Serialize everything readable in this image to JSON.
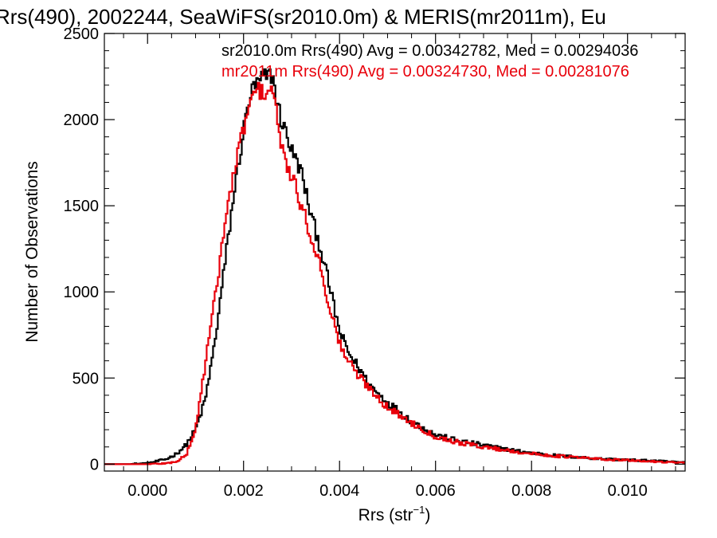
{
  "chart_data": {
    "type": "line",
    "title": "Rrs(490), 2002244, SeaWiFS(sr2010.0m) & MERIS(mr2011m), Eu",
    "xlabel": "Rrs (str",
    "xlabel_sup": "−1",
    "xlabel_suffix": ")",
    "ylabel": "Number of Observations",
    "xlim": [
      -0.0009,
      0.0112
    ],
    "ylim": [
      -40,
      2500
    ],
    "xticks": [
      0.0,
      0.002,
      0.004,
      0.006,
      0.008,
      0.01
    ],
    "xtick_labels": [
      "0.000",
      "0.002",
      "0.004",
      "0.006",
      "0.008",
      "0.010"
    ],
    "yticks": [
      0,
      500,
      1000,
      1500,
      2000,
      2500
    ],
    "ytick_labels": [
      "0",
      "500",
      "1000",
      "1500",
      "2000",
      "2500"
    ],
    "grid": false,
    "legend_position": "top-right",
    "series": [
      {
        "name": "sr2010.0m",
        "color": "#000000",
        "legend_text": "sr2010.0m Rrs(490) Avg = 0.00342782, Med = 0.00294036",
        "x": [
          -0.0009,
          -0.0004,
          0.0,
          0.0004,
          0.0006,
          0.0008,
          0.001,
          0.0012,
          0.0014,
          0.0016,
          0.0018,
          0.002,
          0.0021,
          0.0022,
          0.0023,
          0.0024,
          0.0025,
          0.0026,
          0.0027,
          0.0028,
          0.0029,
          0.003,
          0.0031,
          0.0032,
          0.0034,
          0.0036,
          0.0038,
          0.004,
          0.0042,
          0.0044,
          0.0046,
          0.0048,
          0.005,
          0.0055,
          0.006,
          0.0065,
          0.007,
          0.0075,
          0.008,
          0.0085,
          0.009,
          0.0095,
          0.01,
          0.0105,
          0.0112
        ],
        "y": [
          0,
          0,
          5,
          30,
          60,
          110,
          200,
          370,
          700,
          1140,
          1570,
          1930,
          2100,
          2180,
          2210,
          2240,
          2250,
          2260,
          2100,
          1980,
          1920,
          1820,
          1760,
          1700,
          1450,
          1260,
          1020,
          770,
          640,
          560,
          470,
          410,
          360,
          250,
          170,
          135,
          110,
          85,
          65,
          50,
          40,
          30,
          25,
          20,
          10
        ]
      },
      {
        "name": "mr2011m",
        "color": "#e8000b",
        "legend_text": "mr2011m Rrs(490) Avg = 0.00324730, Med = 0.00281076",
        "x": [
          -0.0009,
          -0.0004,
          0.0,
          0.0004,
          0.0006,
          0.0008,
          0.001,
          0.0012,
          0.0014,
          0.0016,
          0.0018,
          0.002,
          0.0021,
          0.0022,
          0.0023,
          0.0024,
          0.0025,
          0.0026,
          0.0027,
          0.0028,
          0.0029,
          0.003,
          0.0031,
          0.0032,
          0.0034,
          0.0036,
          0.0038,
          0.004,
          0.0042,
          0.0044,
          0.0046,
          0.0048,
          0.005,
          0.0055,
          0.006,
          0.0065,
          0.007,
          0.0075,
          0.008,
          0.0085,
          0.009,
          0.0095,
          0.01,
          0.0105,
          0.0112
        ],
        "y": [
          0,
          0,
          0,
          5,
          15,
          50,
          200,
          580,
          950,
          1380,
          1690,
          1950,
          2060,
          2130,
          2180,
          2150,
          2170,
          2190,
          2000,
          1820,
          1750,
          1650,
          1600,
          1500,
          1330,
          1150,
          900,
          700,
          590,
          510,
          450,
          390,
          330,
          240,
          160,
          125,
          100,
          80,
          60,
          48,
          38,
          28,
          22,
          16,
          8
        ]
      }
    ]
  }
}
